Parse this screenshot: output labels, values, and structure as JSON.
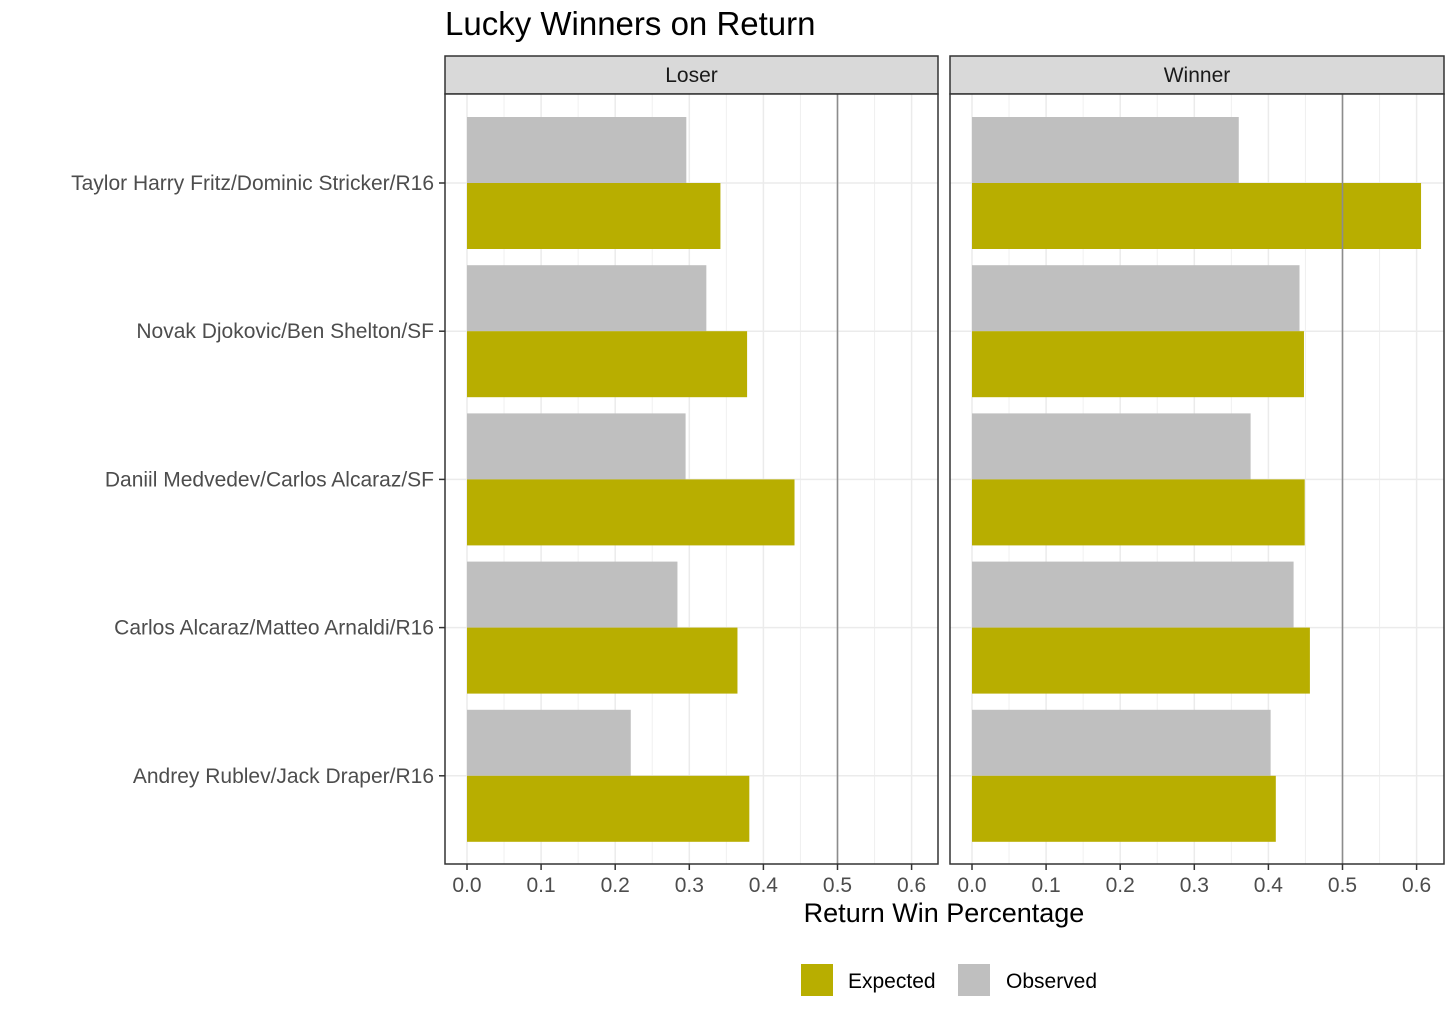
{
  "chart_data": {
    "type": "bar",
    "orientation": "horizontal",
    "title": "Lucky Winners on Return",
    "xlabel": "Return Win Percentage",
    "ylabel": "",
    "xlim": [
      0,
      0.63
    ],
    "xticks": [
      "0.0",
      "0.1",
      "0.2",
      "0.3",
      "0.4",
      "0.5",
      "0.6"
    ],
    "reference_line_x": 0.5,
    "grid": true,
    "legend_position": "bottom",
    "categories": [
      "Taylor Harry Fritz/Dominic Stricker/R16",
      "Novak Djokovic/Ben Shelton/SF",
      "Daniil Medvedev/Carlos Alcaraz/SF",
      "Carlos Alcaraz/Matteo Arnaldi/R16",
      "Andrey Rublev/Jack Draper/R16"
    ],
    "legend": [
      {
        "name": "Expected",
        "color": "#B8AE00"
      },
      {
        "name": "Observed",
        "color": "#BFBFBF"
      }
    ],
    "facets": [
      {
        "label": "Loser",
        "series": [
          {
            "name": "Observed",
            "values": [
              0.296,
              0.323,
              0.295,
              0.284,
              0.221
            ]
          },
          {
            "name": "Expected",
            "values": [
              0.342,
              0.378,
              0.442,
              0.365,
              0.381
            ]
          }
        ]
      },
      {
        "label": "Winner",
        "series": [
          {
            "name": "Observed",
            "values": [
              0.36,
              0.442,
              0.376,
              0.434,
              0.403
            ]
          },
          {
            "name": "Expected",
            "values": [
              0.606,
              0.448,
              0.449,
              0.456,
              0.41
            ]
          }
        ]
      }
    ]
  }
}
